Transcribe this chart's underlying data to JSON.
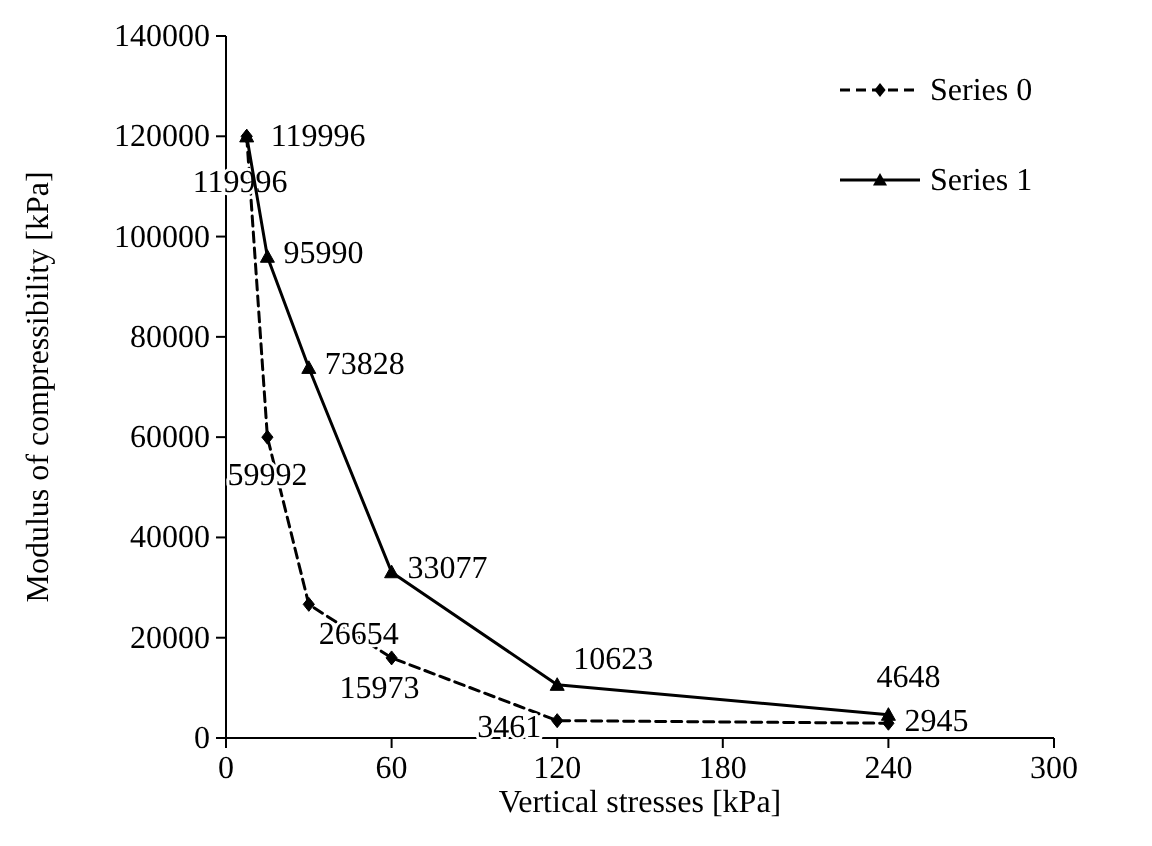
{
  "chart_data": {
    "type": "line",
    "xlabel": "Vertical stresses [kPa]",
    "ylabel": "Modulus of compressibility [kPa]",
    "x": [
      7.5,
      15,
      30,
      60,
      120,
      240
    ],
    "series": [
      {
        "name": "Series 0",
        "color": "#000000",
        "values": [
          119996,
          59992,
          26654,
          15973,
          3461,
          2945
        ],
        "marker": "diamond",
        "line_style": "dashed"
      },
      {
        "name": "Series 1",
        "color": "#000000",
        "values": [
          119996,
          95990,
          73828,
          33077,
          10623,
          4648
        ],
        "marker": "triangle",
        "line_style": "solid"
      }
    ],
    "xlim": [
      0,
      300
    ],
    "xticks": [
      0,
      60,
      120,
      180,
      240,
      300
    ],
    "ylim": [
      0,
      140000
    ],
    "yticks": [
      0,
      20000,
      40000,
      60000,
      80000,
      100000,
      120000,
      140000
    ],
    "grid": false,
    "legend": "top right",
    "data_labels": true
  }
}
